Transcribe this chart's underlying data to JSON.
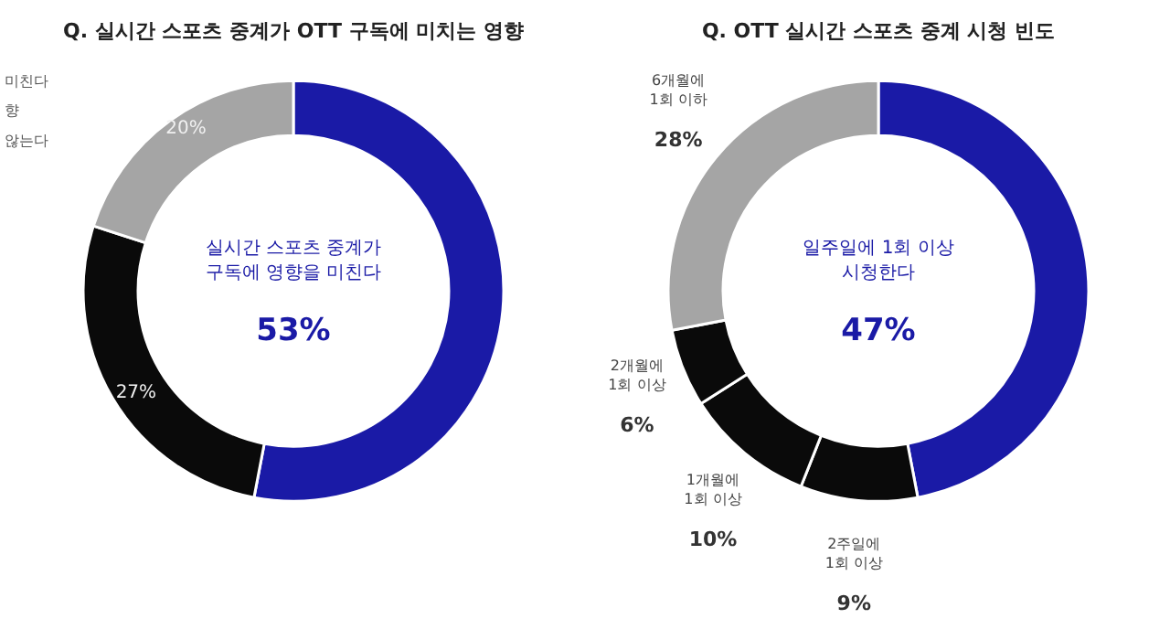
{
  "chart_data": [
    {
      "type": "donut",
      "title": "Q. 실시간 스포츠 중계가 OTT 구독에 미치는 영향",
      "categories": [
        "실시간 스포츠 중계가\n구독에 영향을 미친다",
        null,
        null
      ],
      "values": [
        53,
        27,
        20
      ],
      "colors": [
        "#1a1aa6",
        "#0a0a0a",
        "#a5a5a5"
      ],
      "value_labels": [
        "53%",
        "27%",
        "20%"
      ],
      "annotations": [
        "미친다",
        "향",
        "않는다"
      ]
    },
    {
      "type": "donut",
      "title": "Q. OTT 실시간 스포츠 중계 시청 빈도",
      "categories": [
        "일주일에 1회 이상\n시청한다",
        "2주일에\n1회 이상",
        "1개월에\n1회 이상",
        "2개월에\n1회 이상",
        "6개월에\n1회 이하"
      ],
      "values": [
        47,
        9,
        10,
        6,
        28
      ],
      "colors": [
        "#1a1aa6",
        "#0a0a0a",
        "#0a0a0a",
        "#0a0a0a",
        "#a5a5a5"
      ],
      "value_labels": [
        "47%",
        "9%",
        "10%",
        "6%",
        "28%"
      ]
    }
  ]
}
